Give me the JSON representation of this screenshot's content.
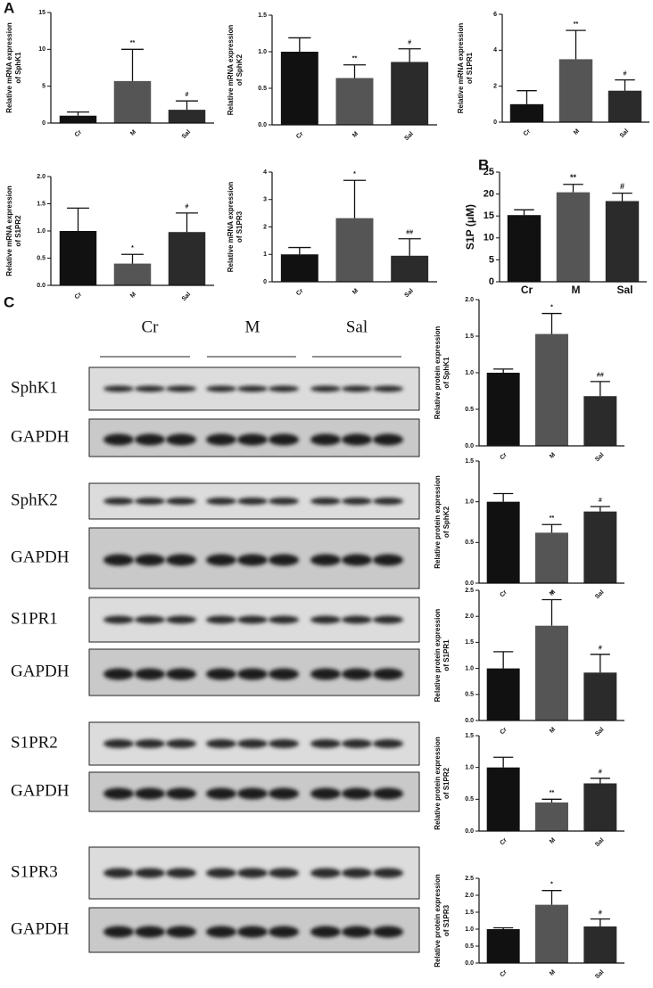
{
  "panel_labels": [
    "A",
    "B",
    "C"
  ],
  "blot": {
    "groups": [
      "Cr",
      "M",
      "Sal"
    ],
    "rows": [
      "SphK1",
      "GAPDH",
      "SphK2",
      "GAPDH",
      "S1PR1",
      "GAPDH",
      "S1PR2",
      "GAPDH",
      "S1PR3",
      "GAPDH"
    ]
  },
  "chart_data": [
    {
      "type": "bar",
      "ylabel": [
        "Relative mRNA expression",
        "of SphK1"
      ],
      "categories": [
        "Cr",
        "M",
        "Sal"
      ],
      "values": [
        1.0,
        5.7,
        1.8
      ],
      "errors": [
        0.5,
        4.3,
        1.2
      ],
      "annotations": [
        null,
        "**",
        "#"
      ],
      "colors": [
        "#111111",
        "#555555",
        "#2b2b2b"
      ],
      "ylim": [
        0,
        15
      ],
      "yticks": [
        0,
        5,
        10,
        15
      ]
    },
    {
      "type": "bar",
      "ylabel": [
        "Relative mRNA expression",
        "of SphK2"
      ],
      "categories": [
        "Cr",
        "M",
        "Sal"
      ],
      "values": [
        1.0,
        0.64,
        0.86
      ],
      "errors": [
        0.19,
        0.18,
        0.18
      ],
      "annotations": [
        null,
        "**",
        "#"
      ],
      "colors": [
        "#111111",
        "#555555",
        "#2b2b2b"
      ],
      "ylim": [
        0,
        1.5
      ],
      "yticks": [
        {
          "value": 0,
          "label": "0.0"
        },
        0.5,
        {
          "value": 1,
          "label": "1.0"
        },
        1.5
      ]
    },
    {
      "type": "bar",
      "ylabel": [
        "Relative mRNA expression",
        "of S1PR1"
      ],
      "categories": [
        "Cr",
        "M",
        "Sal"
      ],
      "values": [
        1.0,
        3.5,
        1.75
      ],
      "errors": [
        0.75,
        1.6,
        0.6
      ],
      "annotations": [
        null,
        "**",
        "#"
      ],
      "colors": [
        "#111111",
        "#555555",
        "#2b2b2b"
      ],
      "ylim": [
        0,
        6
      ],
      "yticks": [
        0,
        2,
        4,
        6
      ]
    },
    {
      "type": "bar",
      "ylabel": [
        "Relative mRNA expression",
        "of S1PR2"
      ],
      "categories": [
        "Cr",
        "M",
        "Sal"
      ],
      "values": [
        1.0,
        0.4,
        0.98
      ],
      "errors": [
        0.42,
        0.17,
        0.35
      ],
      "annotations": [
        null,
        "*",
        "#"
      ],
      "colors": [
        "#111111",
        "#555555",
        "#2b2b2b"
      ],
      "ylim": [
        0,
        2
      ],
      "yticks": [
        {
          "value": 0,
          "label": "0.0"
        },
        0.5,
        {
          "value": 1,
          "label": "1.0"
        },
        1.5,
        {
          "value": 2,
          "label": "2.0"
        }
      ]
    },
    {
      "type": "bar",
      "ylabel": [
        "Relative mRNA expression",
        "of S1PR3"
      ],
      "categories": [
        "Cr",
        "M",
        "Sal"
      ],
      "values": [
        1.0,
        2.32,
        0.95
      ],
      "errors": [
        0.25,
        1.38,
        0.62
      ],
      "annotations": [
        null,
        "*",
        "##"
      ],
      "colors": [
        "#111111",
        "#555555",
        "#2b2b2b"
      ],
      "ylim": [
        0,
        4
      ],
      "yticks": [
        0,
        1,
        2,
        3,
        4
      ]
    },
    {
      "type": "bar",
      "ylabel": [
        "S1P (μM)"
      ],
      "categories": [
        "Cr",
        "M",
        "Sal"
      ],
      "values": [
        15.2,
        20.4,
        18.4
      ],
      "errors": [
        1.2,
        1.8,
        1.8
      ],
      "annotations": [
        null,
        "**",
        "#"
      ],
      "colors": [
        "#111111",
        "#555555",
        "#2b2b2b"
      ],
      "ylim": [
        0,
        25
      ],
      "yticks": [
        0,
        5,
        10,
        15,
        20,
        25
      ]
    },
    {
      "type": "bar",
      "ylabel": [
        "Relative protein expression",
        "of SphK1"
      ],
      "categories": [
        "Cr",
        "M",
        "Sal"
      ],
      "values": [
        1.0,
        1.53,
        0.68
      ],
      "errors": [
        0.05,
        0.28,
        0.2
      ],
      "annotations": [
        null,
        "*",
        "##"
      ],
      "colors": [
        "#111111",
        "#555555",
        "#2b2b2b"
      ],
      "ylim": [
        0,
        2
      ],
      "yticks": [
        {
          "value": 0,
          "label": "0.0"
        },
        0.5,
        {
          "value": 1,
          "label": "1.0"
        },
        1.5,
        {
          "value": 2,
          "label": "2.0"
        }
      ]
    },
    {
      "type": "bar",
      "ylabel": [
        "Relative protein expression",
        "of SphK2"
      ],
      "categories": [
        "Cr",
        "M",
        "Sal"
      ],
      "values": [
        1.0,
        0.62,
        0.88
      ],
      "errors": [
        0.1,
        0.1,
        0.06
      ],
      "annotations": [
        null,
        "**",
        "#"
      ],
      "colors": [
        "#111111",
        "#555555",
        "#2b2b2b"
      ],
      "ylim": [
        0,
        1.5
      ],
      "yticks": [
        {
          "value": 0,
          "label": "0.0"
        },
        0.5,
        {
          "value": 1,
          "label": "1.0"
        },
        1.5
      ]
    },
    {
      "type": "bar",
      "ylabel": [
        "Relative protein expression",
        "of S1PR1"
      ],
      "categories": [
        "Cr",
        "M",
        "Sal"
      ],
      "values": [
        1.0,
        1.82,
        0.92
      ],
      "errors": [
        0.32,
        0.5,
        0.35
      ],
      "annotations": [
        null,
        "*",
        "#"
      ],
      "colors": [
        "#111111",
        "#555555",
        "#2b2b2b"
      ],
      "ylim": [
        0,
        2.5
      ],
      "yticks": [
        {
          "value": 0,
          "label": "0.0"
        },
        0.5,
        {
          "value": 1,
          "label": "1.0"
        },
        1.5,
        {
          "value": 2,
          "label": "2.0"
        },
        2.5
      ]
    },
    {
      "type": "bar",
      "ylabel": [
        "Relative protein expression",
        "of S1PR2"
      ],
      "categories": [
        "Cr",
        "M",
        "Sal"
      ],
      "values": [
        1.0,
        0.45,
        0.75
      ],
      "errors": [
        0.16,
        0.05,
        0.08
      ],
      "annotations": [
        null,
        "**",
        "#"
      ],
      "colors": [
        "#111111",
        "#555555",
        "#2b2b2b"
      ],
      "ylim": [
        0,
        1.5
      ],
      "yticks": [
        {
          "value": 0,
          "label": "0.0"
        },
        0.5,
        {
          "value": 1,
          "label": "1.0"
        },
        1.5
      ]
    },
    {
      "type": "bar",
      "ylabel": [
        "Relative protein expression",
        "of S1PR3"
      ],
      "categories": [
        "Cr",
        "M",
        "Sal"
      ],
      "values": [
        1.0,
        1.72,
        1.08
      ],
      "errors": [
        0.04,
        0.42,
        0.22
      ],
      "annotations": [
        null,
        "*",
        "#"
      ],
      "colors": [
        "#111111",
        "#555555",
        "#2b2b2b"
      ],
      "ylim": [
        0,
        2.5
      ],
      "yticks": [
        {
          "value": 0,
          "label": "0.0"
        },
        0.5,
        {
          "value": 1,
          "label": "1.0"
        },
        1.5,
        {
          "value": 2,
          "label": "2.0"
        },
        2.5
      ]
    }
  ]
}
